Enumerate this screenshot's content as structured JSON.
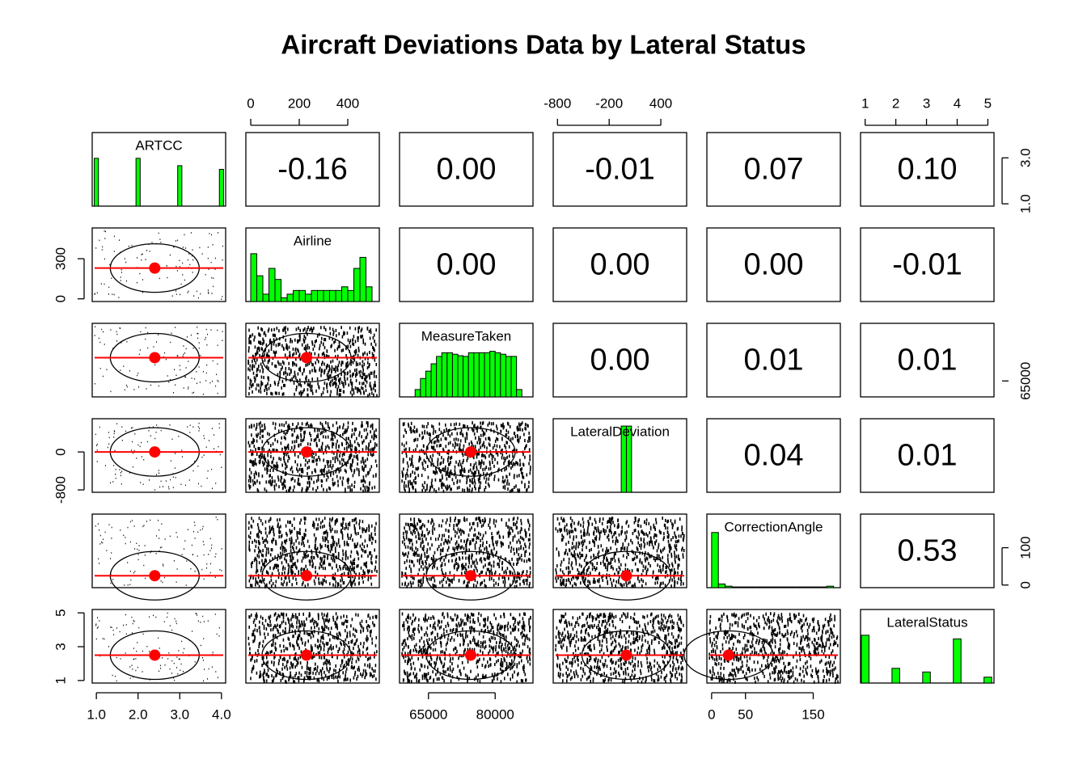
{
  "chart_data": {
    "type": "pairs",
    "title": "Aircraft Deviations Data by Lateral Status",
    "variables": [
      {
        "name": "ARTCC",
        "lim": [
          0.9,
          4.1
        ],
        "mean": 2.4,
        "xticks": [
          {
            "value": 1,
            "label": "1.0"
          },
          {
            "value": 2,
            "label": "2.0"
          },
          {
            "value": 3,
            "label": "3.0"
          },
          {
            "value": 4,
            "label": "4.0"
          }
        ],
        "yticks": [
          {
            "value": 1,
            "label": "1.0"
          },
          {
            "value": 3,
            "label": "3.0"
          }
        ],
        "bins": [
          0.95,
          1.05,
          1.95,
          2.05,
          2.95,
          3.05,
          3.95,
          4.05
        ],
        "counts": [
          0.65,
          0,
          0.65,
          0,
          0.55,
          0,
          0.5
        ]
      },
      {
        "name": "Airline",
        "lim": [
          -20,
          530
        ],
        "mean": 230,
        "xticks": [
          0,
          200,
          400
        ],
        "yticks": [
          0,
          300
        ],
        "bins": [
          0,
          25,
          50,
          75,
          100,
          125,
          150,
          175,
          200,
          225,
          250,
          275,
          300,
          325,
          350,
          375,
          400,
          425,
          450,
          475,
          500
        ],
        "counts": [
          0.65,
          0.35,
          0.1,
          0.45,
          0.3,
          0.05,
          0.1,
          0.15,
          0.15,
          0.1,
          0.15,
          0.15,
          0.15,
          0.15,
          0.15,
          0.2,
          0.15,
          0.45,
          0.6,
          0.2
        ]
      },
      {
        "name": "MeasureTaken",
        "lim": [
          58500,
          88500
        ],
        "mean": 74500,
        "xticks": [
          65000,
          80000
        ],
        "yticks": [
          65000
        ],
        "bins": [
          62000,
          63200,
          64400,
          65600,
          66800,
          68000,
          69200,
          70400,
          71600,
          72800,
          74000,
          75200,
          76400,
          77600,
          78800,
          80000,
          81200,
          82400,
          83600,
          84800,
          86000
        ],
        "counts": [
          0.1,
          0.25,
          0.35,
          0.45,
          0.55,
          0.6,
          0.6,
          0.58,
          0.56,
          0.55,
          0.6,
          0.6,
          0.6,
          0.6,
          0.62,
          0.6,
          0.58,
          0.55,
          0.55,
          0.1
        ]
      },
      {
        "name": "LateralDeviation",
        "lim": [
          -850,
          700
        ],
        "mean": 0,
        "xticks": [
          -800,
          -200,
          400
        ],
        "yticks": [
          -800,
          0
        ],
        "bins": [
          -60,
          0,
          60
        ],
        "counts": [
          0.9,
          0.9
        ]
      },
      {
        "name": "CorrectionAngle",
        "lim": [
          -7,
          190
        ],
        "mean": 25,
        "xticks": [
          0,
          50,
          150
        ],
        "yticks": [
          0,
          100
        ],
        "bins": [
          0,
          10,
          20,
          30,
          40,
          50,
          60,
          70,
          80,
          90,
          100,
          110,
          120,
          130,
          140,
          150,
          160,
          170,
          180
        ],
        "counts": [
          0.75,
          0.05,
          0.02,
          0.01,
          0.01,
          0.01,
          0.01,
          0.01,
          0.01,
          0.01,
          0.01,
          0.01,
          0.01,
          0.01,
          0.01,
          0.01,
          0.01,
          0.02
        ]
      },
      {
        "name": "LateralStatus",
        "lim": [
          0.85,
          5.2
        ],
        "mean": 2.5,
        "xticks": [
          1,
          2,
          3,
          4,
          5
        ],
        "yticks": [
          1,
          3,
          5
        ],
        "bins": [
          0.875,
          1.125,
          1.875,
          2.125,
          2.875,
          3.125,
          3.875,
          4.125,
          4.875,
          5.125
        ],
        "counts": [
          0.65,
          0,
          0.2,
          0,
          0.15,
          0,
          0.6,
          0,
          0.08
        ]
      }
    ],
    "correlations": {
      "values": [
        [
          -0.16,
          0,
          -0.01,
          0.07,
          0.1
        ],
        [
          0,
          0,
          0,
          -0.01
        ],
        [
          0,
          0.01,
          0.01
        ],
        [
          0.04,
          0.01
        ],
        [
          0.53
        ]
      ],
      "value_labels": [
        [
          "-0.16",
          "0.00",
          "-0.01",
          "0.07",
          "0.10"
        ],
        [
          "0.00",
          "0.00",
          "0.00",
          "-0.01"
        ],
        [
          "0.00",
          "0.01",
          "0.01"
        ],
        [
          "0.04",
          "0.01"
        ],
        [
          "0.53"
        ]
      ]
    },
    "hist_color": "#00ff00",
    "mean_color": "#ff0000"
  }
}
